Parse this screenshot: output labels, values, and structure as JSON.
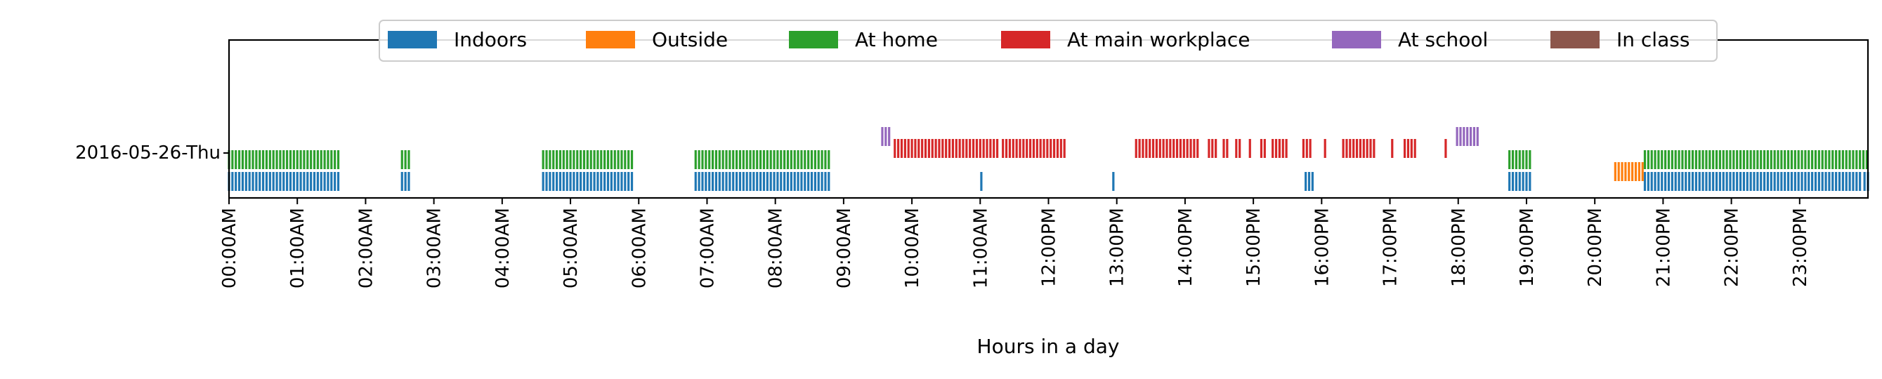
{
  "chart_data": {
    "type": "event_raster",
    "date_label": "2016-05-26-Thu",
    "xlabel": "Hours in a day",
    "x_range_minutes": [
      0,
      1440
    ],
    "tick_labels": [
      "00:00AM",
      "01:00AM",
      "02:00AM",
      "03:00AM",
      "04:00AM",
      "05:00AM",
      "06:00AM",
      "07:00AM",
      "08:00AM",
      "09:00AM",
      "10:00AM",
      "11:00AM",
      "12:00PM",
      "13:00PM",
      "14:00PM",
      "15:00PM",
      "16:00PM",
      "17:00PM",
      "18:00PM",
      "19:00PM",
      "20:00PM",
      "21:00PM",
      "22:00PM",
      "23:00PM"
    ],
    "legend_position": "top-center",
    "series": [
      {
        "name": "Indoors",
        "color": "#1f77b4",
        "intervals": [
          [
            0,
            96
          ],
          [
            152,
            160
          ],
          [
            276,
            356
          ],
          [
            410,
            527
          ],
          [
            661,
            663
          ],
          [
            777,
            778
          ],
          [
            946,
            954
          ],
          [
            1125,
            1144
          ],
          [
            1244,
            1435
          ],
          [
            1437,
            1440
          ]
        ]
      },
      {
        "name": "Outside",
        "color": "#ff7f0e",
        "intervals": [
          [
            1218,
            1244
          ]
        ]
      },
      {
        "name": "At home",
        "color": "#2ca02c",
        "intervals": [
          [
            0,
            96
          ],
          [
            152,
            160
          ],
          [
            276,
            356
          ],
          [
            410,
            527
          ],
          [
            1125,
            1144
          ],
          [
            1244,
            1440
          ]
        ]
      },
      {
        "name": "At main workplace",
        "color": "#d62728",
        "intervals": [
          [
            585,
            675
          ],
          [
            680,
            735
          ],
          [
            797,
            852
          ],
          [
            861,
            868
          ],
          [
            874,
            878
          ],
          [
            885,
            888
          ],
          [
            897,
            899
          ],
          [
            907,
            910
          ],
          [
            917,
            931
          ],
          [
            944,
            950
          ],
          [
            963,
            964
          ],
          [
            979,
            1008
          ],
          [
            1022,
            1024
          ],
          [
            1033,
            1044
          ],
          [
            1069,
            1070
          ]
        ]
      },
      {
        "name": "At school",
        "color": "#9467bd",
        "intervals": [
          [
            574,
            580
          ],
          [
            1079,
            1098
          ]
        ]
      },
      {
        "name": "In class",
        "color": "#8c564b",
        "intervals": []
      }
    ]
  }
}
